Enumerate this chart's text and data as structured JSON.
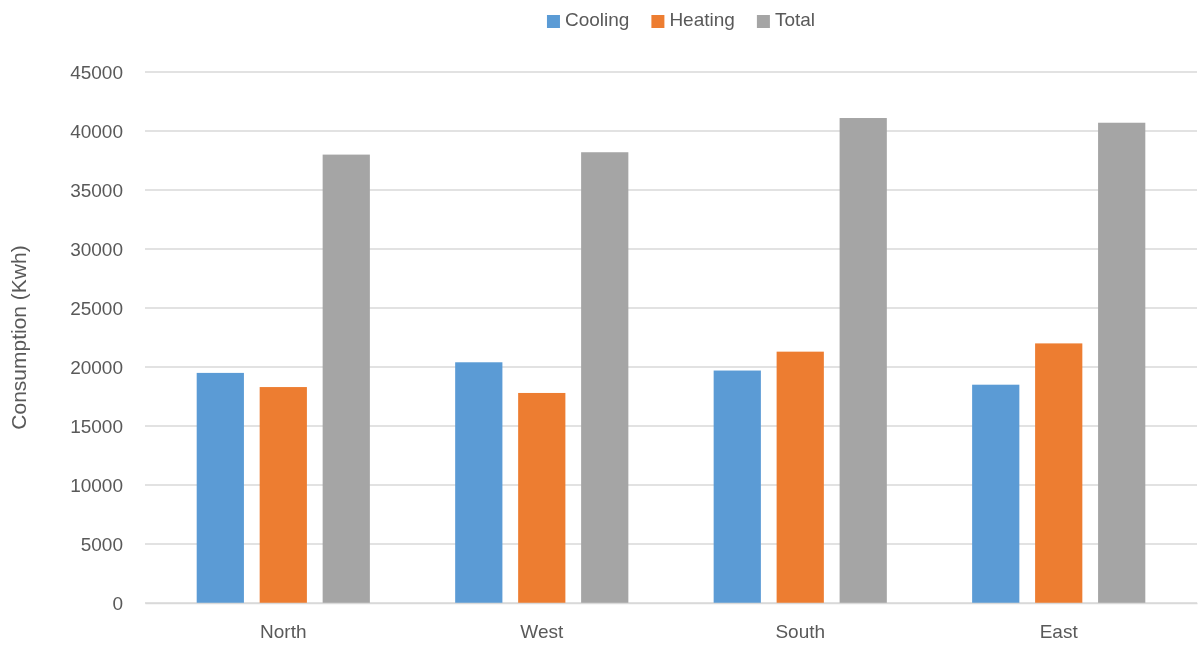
{
  "chart_data": {
    "type": "bar",
    "ylabel": "Consumption (Kwh)",
    "categories": [
      "North",
      "West",
      "South",
      "East"
    ],
    "series": [
      {
        "name": "Cooling",
        "color": "#5b9bd5",
        "values": [
          19500,
          20400,
          19700,
          18500
        ]
      },
      {
        "name": "Heating",
        "color": "#ed7d31",
        "values": [
          18300,
          17800,
          21300,
          22000
        ]
      },
      {
        "name": "Total",
        "color": "#a5a5a5",
        "values": [
          38000,
          38200,
          41100,
          40700
        ]
      }
    ],
    "ylim": [
      0,
      45000
    ],
    "yticks": [
      0,
      5000,
      10000,
      15000,
      20000,
      25000,
      30000,
      35000,
      40000,
      45000
    ],
    "grid": "y",
    "legend": "top"
  }
}
